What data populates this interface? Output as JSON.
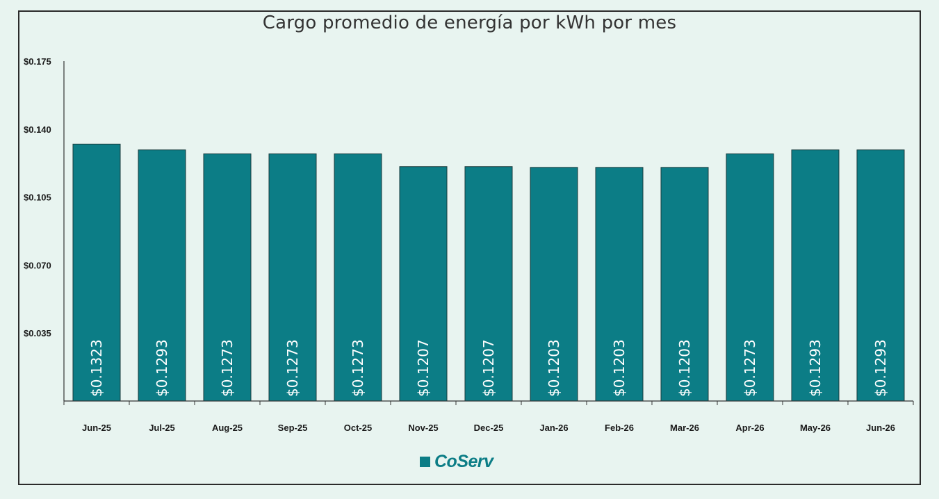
{
  "chart_data": {
    "type": "bar",
    "title": "Cargo promedio de energía por kWh por mes",
    "categories": [
      "Jun-25",
      "Jul-25",
      "Aug-25",
      "Sep-25",
      "Oct-25",
      "Nov-25",
      "Dec-25",
      "Jan-26",
      "Feb-26",
      "Mar-26",
      "Apr-26",
      "May-26",
      "Jun-26"
    ],
    "values": [
      0.1323,
      0.1293,
      0.1273,
      0.1273,
      0.1273,
      0.1207,
      0.1207,
      0.1203,
      0.1203,
      0.1203,
      0.1273,
      0.1293,
      0.1293
    ],
    "value_labels": [
      "$0.1323",
      "$0.1293",
      "$0.1273",
      "$0.1273",
      "$0.1273",
      "$0.1207",
      "$0.1207",
      "$0.1203",
      "$0.1203",
      "$0.1203",
      "$0.1273",
      "$0.1293",
      "$0.1293"
    ],
    "y_ticks": [
      0.035,
      0.07,
      0.105,
      0.14,
      0.175
    ],
    "y_tick_labels": [
      "$0.035",
      "$0.070",
      "$0.105",
      "$0.140",
      "$0.175"
    ],
    "ylim": [
      0,
      0.175
    ],
    "xlabel": "",
    "ylabel": "",
    "grid": false,
    "bar_color": "#0c7d86",
    "label_color": "#ffffff"
  },
  "brand": {
    "logo_text": "CoServ",
    "color": "#0c7d86"
  }
}
